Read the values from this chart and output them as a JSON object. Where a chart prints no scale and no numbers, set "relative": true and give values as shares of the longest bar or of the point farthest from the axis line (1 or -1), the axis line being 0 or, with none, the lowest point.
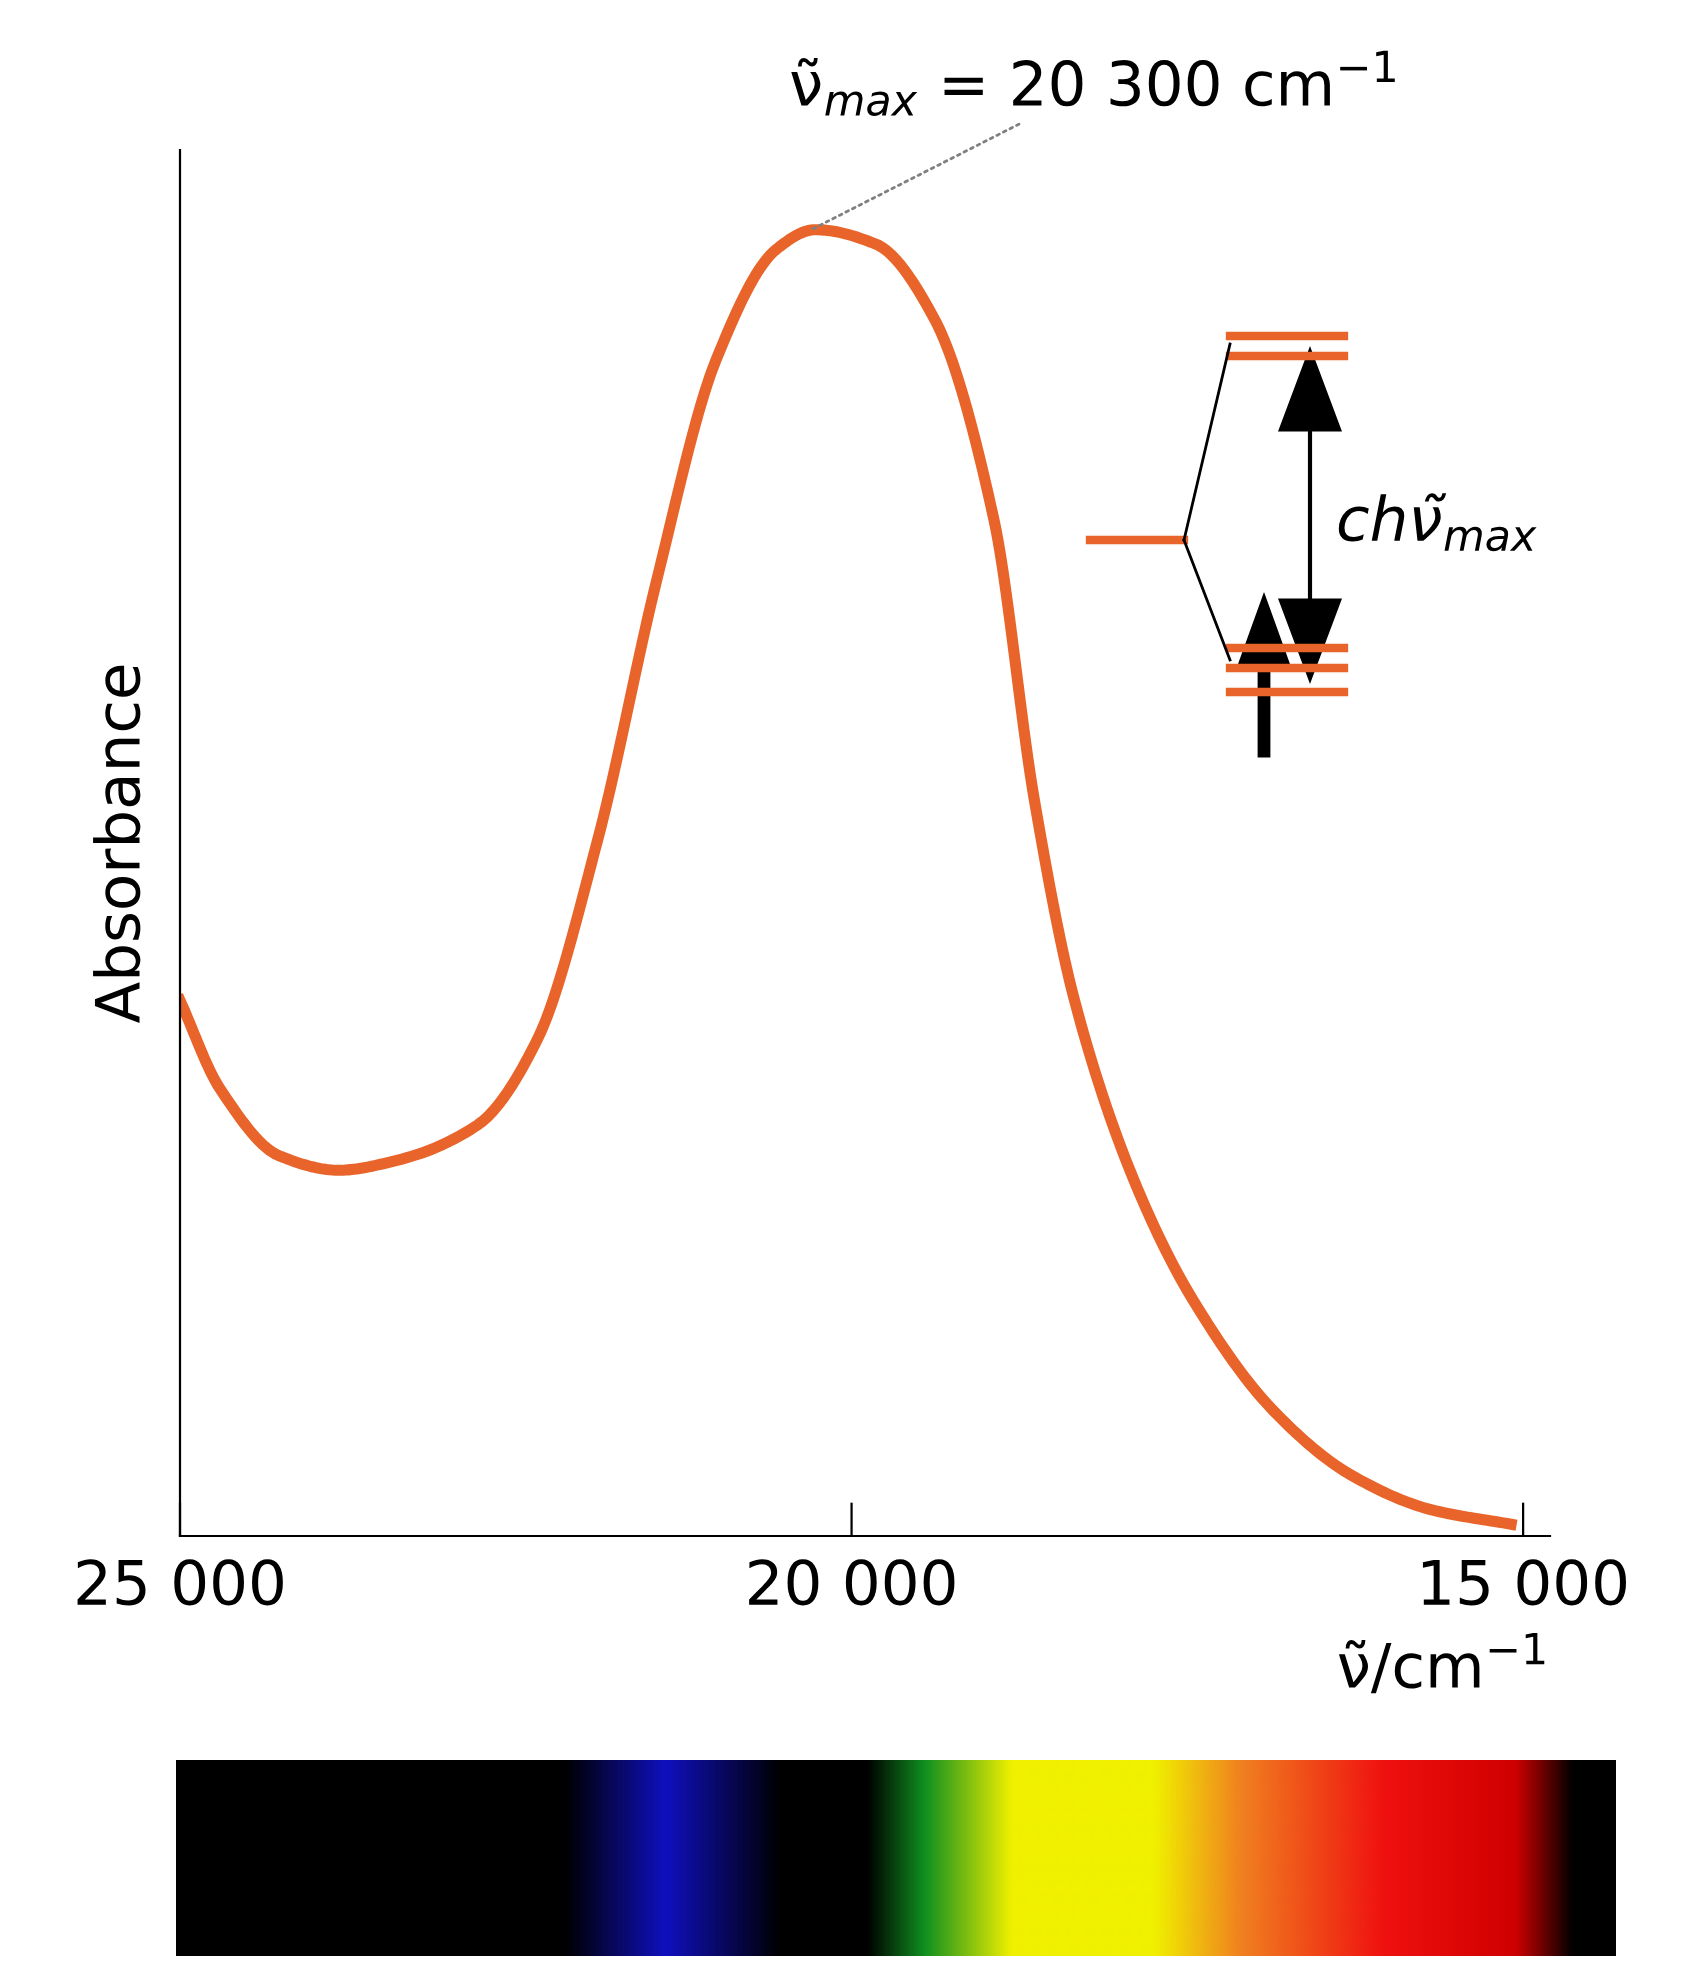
{
  "chart_data": {
    "type": "line",
    "relative": true,
    "xlabel": "ν̃/cm$^{−1}$",
    "ylabel": "Absorbance",
    "x": [
      25000,
      24700,
      24260,
      23820,
      23370,
      22780,
      22340,
      21890,
      21450,
      21010,
      20560,
      20270,
      19820,
      19380,
      18940,
      18640,
      18340,
      17900,
      17460,
      16860,
      16270,
      15680,
      15090
    ],
    "series": [
      {
        "color": "#e8642a",
        "values": [
          0.41,
          0.342,
          0.291,
          0.28,
          0.288,
          0.315,
          0.38,
          0.533,
          0.732,
          0.9,
          0.985,
          1.0,
          0.989,
          0.931,
          0.778,
          0.564,
          0.41,
          0.273,
          0.181,
          0.096,
          0.046,
          0.02,
          0.009
        ]
      }
    ],
    "xlim": [
      25000,
      14800
    ],
    "xticks": [
      {
        "value": 25000,
        "label": "25 000"
      },
      {
        "value": 20000,
        "label": "20 000"
      },
      {
        "value": 15000,
        "label": "15 000"
      }
    ],
    "annotations": [
      {
        "text": "ν̃$_{max}$ = 20 300 cm$^{−1}$",
        "x": 20300,
        "y": 1.0
      },
      "chν̃$_{max}$"
    ],
    "grid": false,
    "legend": false,
    "marker": "none",
    "line_style": "solid"
  }
}
